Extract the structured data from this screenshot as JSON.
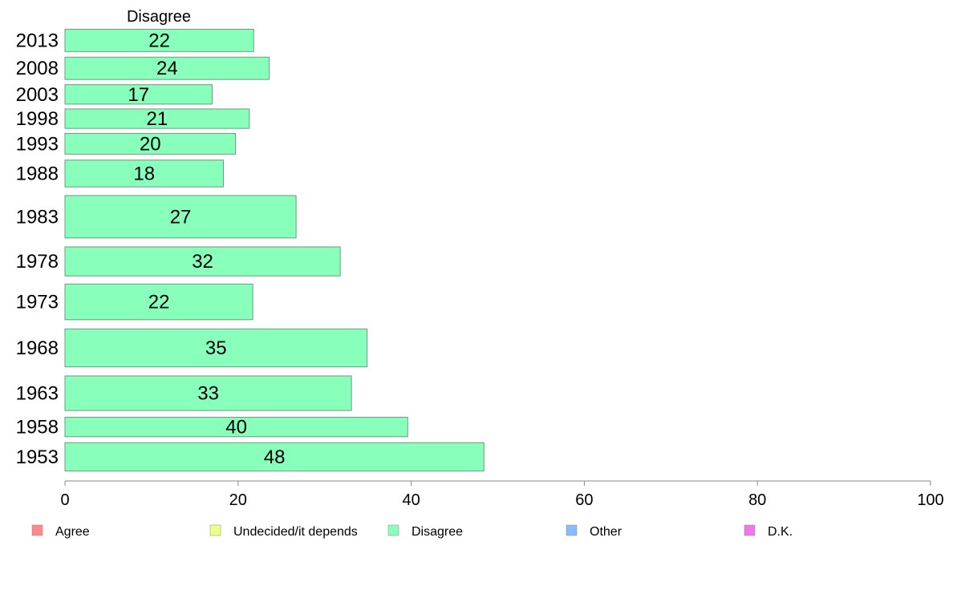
{
  "chart_data": {
    "type": "bar",
    "orientation": "horizontal",
    "panel_label": "Disagree",
    "categories": [
      "2013",
      "2008",
      "2003",
      "1998",
      "1993",
      "1988",
      "1983",
      "1978",
      "1973",
      "1968",
      "1963",
      "1958",
      "1953"
    ],
    "series": [
      {
        "name": "Disagree",
        "color": "#88ffbb",
        "values": [
          21.8,
          23.6,
          17.0,
          21.3,
          19.7,
          18.3,
          26.7,
          31.8,
          21.7,
          34.9,
          33.1,
          39.6,
          48.4
        ],
        "labels": [
          "22",
          "24",
          "17",
          "21",
          "20",
          "18",
          "27",
          "32",
          "22",
          "35",
          "33",
          "40",
          "48"
        ]
      }
    ],
    "row_weights": [
      1.0,
      1.0,
      0.87,
      0.87,
      0.93,
      1.2,
      1.9,
      1.3,
      1.6,
      1.7,
      1.55,
      0.87,
      1.27
    ],
    "xlim": [
      0,
      100
    ],
    "xticks": [
      "0",
      "20",
      "40",
      "60",
      "80",
      "100"
    ],
    "xlabel": "",
    "ylabel": "",
    "grid": false,
    "legend_position": "bottom",
    "legend": [
      {
        "label": "Agree",
        "color": "#ff8888"
      },
      {
        "label": "Undecided/it depends",
        "color": "#eeff88"
      },
      {
        "label": "Disagree",
        "color": "#88ffbb"
      },
      {
        "label": "Other",
        "color": "#88bbff"
      },
      {
        "label": "D.K.",
        "color": "#ee77ee"
      }
    ]
  }
}
